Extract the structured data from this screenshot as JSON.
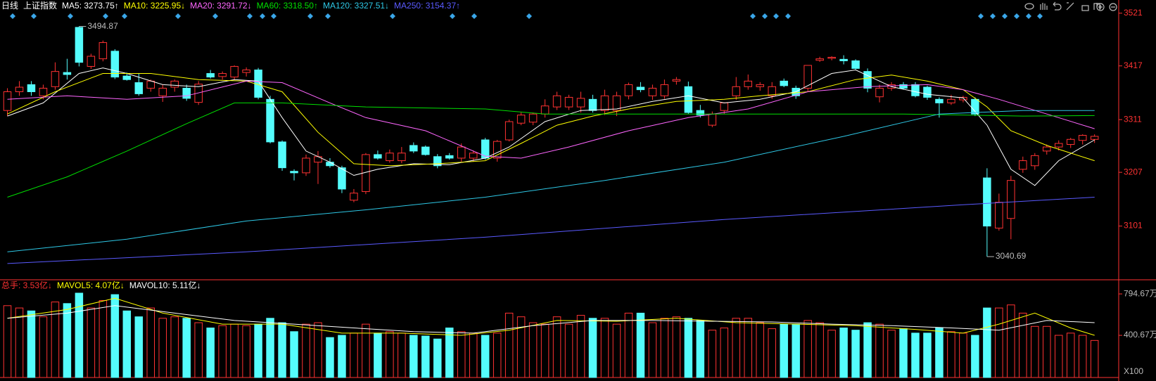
{
  "chart_data": [
    {
      "type": "candlestick",
      "title": "日线",
      "subtitle": "上证指数",
      "up_color": "#ff3232",
      "down_color": "#54fcfc",
      "axis_color": "#ff3232",
      "ylim": [
        2995,
        3547
      ],
      "yticks": [
        3521,
        3417,
        3311,
        3207,
        3101
      ],
      "open": [
        3329,
        3366,
        3380,
        3358,
        3376,
        3404,
        3493,
        3416,
        3431,
        3446,
        3397,
        3384,
        3373,
        3358,
        3375,
        3373,
        3345,
        3402,
        3396,
        3395,
        3404,
        3409,
        3351,
        3267,
        3209,
        3206,
        3227,
        3227,
        3216,
        3152,
        3169,
        3242,
        3230,
        3230,
        3260,
        3257,
        3238,
        3240,
        3235,
        3235,
        3271,
        3235,
        3271,
        3304,
        3306,
        3322,
        3336,
        3336,
        3336,
        3351,
        3329,
        3329,
        3358,
        3375,
        3358,
        3358,
        3387,
        3376,
        3329,
        3300,
        3329,
        3358,
        3376,
        3376,
        3358,
        3387,
        3373,
        3373,
        3428,
        3432,
        3430,
        3427,
        3406,
        3356,
        3373,
        3380,
        3380,
        3375,
        3351,
        3344,
        3350,
        3351,
        3196,
        3097,
        3116,
        3213,
        3220,
        3249,
        3257,
        3262,
        3270,
        3272
      ],
      "high": [
        3373,
        3387,
        3387,
        3380,
        3424,
        3431,
        3494.87,
        3441,
        3467,
        3450,
        3404,
        3402,
        3390,
        3380,
        3390,
        3380,
        3387,
        3409,
        3406,
        3418,
        3414,
        3413,
        3358,
        3270,
        3213,
        3242,
        3249,
        3235,
        3220,
        3174,
        3245,
        3250,
        3252,
        3257,
        3266,
        3260,
        3243,
        3245,
        3264,
        3250,
        3275,
        3271,
        3311,
        3325,
        3325,
        3351,
        3366,
        3360,
        3366,
        3360,
        3370,
        3366,
        3384,
        3385,
        3380,
        3390,
        3395,
        3386,
        3340,
        3327,
        3345,
        3395,
        3400,
        3385,
        3385,
        3392,
        3378,
        3418,
        3435,
        3436,
        3438,
        3430,
        3412,
        3380,
        3385,
        3385,
        3385,
        3378,
        3355,
        3360,
        3358,
        3355,
        3215,
        3165,
        3200,
        3238,
        3245,
        3262,
        3270,
        3275,
        3282,
        3282
      ],
      "low": [
        3318,
        3358,
        3358,
        3351,
        3370,
        3390,
        3416,
        3411,
        3426,
        3391,
        3388,
        3358,
        3366,
        3346,
        3366,
        3348,
        3340,
        3392,
        3390,
        3390,
        3396,
        3351,
        3264,
        3210,
        3191,
        3200,
        3184,
        3216,
        3166,
        3148,
        3164,
        3232,
        3226,
        3225,
        3245,
        3240,
        3215,
        3232,
        3228,
        3228,
        3232,
        3228,
        3268,
        3300,
        3300,
        3315,
        3330,
        3330,
        3325,
        3325,
        3320,
        3318,
        3351,
        3365,
        3350,
        3352,
        3380,
        3322,
        3315,
        3296,
        3322,
        3350,
        3370,
        3368,
        3352,
        3375,
        3352,
        3366,
        3425,
        3428,
        3420,
        3410,
        3365,
        3345,
        3368,
        3370,
        3355,
        3350,
        3315,
        3340,
        3345,
        3318,
        3040.69,
        3092,
        3075,
        3206,
        3212,
        3242,
        3250,
        3255,
        3262,
        3265
      ],
      "close": [
        3366,
        3375,
        3366,
        3373,
        3406,
        3400,
        3424,
        3436,
        3463,
        3395,
        3390,
        3362,
        3387,
        3373,
        3387,
        3353,
        3381,
        3395,
        3402,
        3416,
        3409,
        3355,
        3267,
        3216,
        3206,
        3235,
        3238,
        3220,
        3174,
        3166,
        3242,
        3235,
        3245,
        3245,
        3249,
        3242,
        3220,
        3235,
        3257,
        3245,
        3235,
        3268,
        3307,
        3320,
        3322,
        3338,
        3358,
        3355,
        3353,
        3329,
        3358,
        3358,
        3380,
        3370,
        3373,
        3380,
        3390,
        3325,
        3320,
        3322,
        3344,
        3376,
        3387,
        3380,
        3376,
        3378,
        3358,
        3418,
        3431,
        3434,
        3427,
        3412,
        3373,
        3373,
        3380,
        3373,
        3358,
        3355,
        3344,
        3351,
        3355,
        3322,
        3101,
        3148,
        3191,
        3230,
        3240,
        3257,
        3264,
        3272,
        3280,
        3278
      ],
      "annotations": [
        {
          "x": 6,
          "value": 3494.87
        },
        {
          "x": 82,
          "value": 3040.69
        }
      ],
      "series": [
        {
          "name": "MA5: 3273.75↑",
          "color": "#ffffff",
          "x": [
            0,
            3,
            6,
            8,
            10,
            13,
            16,
            19,
            21,
            23,
            25,
            27,
            29,
            31,
            34,
            37,
            40,
            42,
            45,
            48,
            51,
            54,
            57,
            60,
            63,
            66,
            69,
            71,
            74,
            77,
            80,
            82,
            84,
            86,
            88,
            91
          ],
          "values": [
            3318,
            3344,
            3402,
            3413,
            3402,
            3380,
            3376,
            3390,
            3387,
            3315,
            3249,
            3227,
            3201,
            3213,
            3224,
            3222,
            3235,
            3257,
            3307,
            3329,
            3332,
            3347,
            3358,
            3344,
            3351,
            3366,
            3402,
            3409,
            3376,
            3361,
            3354,
            3300,
            3213,
            3181,
            3230,
            3271
          ]
        },
        {
          "name": "MA10: 3225.95↓",
          "color": "#ffff00",
          "x": [
            0,
            4,
            8,
            12,
            16,
            20,
            23,
            26,
            29,
            32,
            36,
            40,
            43,
            46,
            49,
            52,
            56,
            60,
            63,
            67,
            71,
            74,
            77,
            80,
            82,
            84,
            87,
            91
          ],
          "values": [
            3322,
            3366,
            3402,
            3402,
            3390,
            3387,
            3366,
            3286,
            3224,
            3220,
            3224,
            3230,
            3264,
            3300,
            3318,
            3332,
            3347,
            3351,
            3358,
            3366,
            3390,
            3399,
            3387,
            3370,
            3336,
            3289,
            3260,
            3230
          ]
        },
        {
          "name": "MA20: 3291.72↓",
          "color": "#ff66ff",
          "x": [
            0,
            5,
            10,
            15,
            20,
            23,
            27,
            30,
            35,
            40,
            43,
            47,
            52,
            57,
            62,
            67,
            72,
            77,
            80,
            83,
            87,
            91
          ],
          "values": [
            3351,
            3358,
            3351,
            3358,
            3387,
            3384,
            3344,
            3315,
            3289,
            3239,
            3235,
            3257,
            3289,
            3315,
            3332,
            3366,
            3376,
            3380,
            3370,
            3351,
            3322,
            3293
          ]
        },
        {
          "name": "MA60: 3318.50↑",
          "color": "#00e000",
          "x": [
            0,
            5,
            10,
            15,
            19,
            23,
            30,
            40,
            45,
            55,
            65,
            75,
            85,
            91
          ],
          "values": [
            3158,
            3198,
            3249,
            3303,
            3344,
            3344,
            3336,
            3332,
            3322,
            3322,
            3322,
            3322,
            3318,
            3319
          ]
        },
        {
          "name": "MA120: 3327.51↓",
          "color": "#2ec8e6",
          "x": [
            0,
            10,
            20,
            30,
            40,
            50,
            60,
            70,
            78,
            85,
            91
          ],
          "values": [
            3050,
            3075,
            3111,
            3133,
            3158,
            3191,
            3227,
            3278,
            3322,
            3329,
            3329
          ]
        },
        {
          "name": "MA250: 3154.37↑",
          "color": "#5a5aff",
          "x": [
            0,
            20,
            40,
            60,
            80,
            91
          ],
          "values": [
            3027,
            3050,
            3079,
            3114,
            3143,
            3158
          ]
        }
      ]
    },
    {
      "type": "bar",
      "ylim": [
        0,
        929
      ],
      "yticks": [
        {
          "value": 794.67,
          "label": "794.67万"
        },
        {
          "value": 400.67,
          "label": "400.67万"
        }
      ],
      "unit": "X100",
      "volume": {
        "name": "总手: 3.53亿↓",
        "color": "#ff3232",
        "values": [
          683,
          661,
          633,
          577,
          718,
          703,
          802,
          661,
          732,
          788,
          633,
          577,
          661,
          563,
          577,
          563,
          521,
          471,
          493,
          507,
          493,
          507,
          563,
          521,
          436,
          507,
          521,
          380,
          401,
          422,
          507,
          422,
          436,
          422,
          401,
          394,
          366,
          471,
          436,
          422,
          401,
          422,
          612,
          577,
          521,
          507,
          577,
          507,
          591,
          563,
          563,
          507,
          612,
          612,
          521,
          563,
          577,
          563,
          542,
          450,
          471,
          563,
          563,
          521,
          464,
          507,
          507,
          542,
          521,
          450,
          471,
          450,
          521,
          507,
          450,
          464,
          422,
          422,
          471,
          436,
          422,
          401,
          661,
          661,
          690,
          612,
          486,
          486,
          401,
          422,
          401,
          352
        ]
      },
      "series": [
        {
          "name": "MAVOL5: 4.07亿↓",
          "color": "#ffff00",
          "x": [
            0,
            5,
            9,
            13,
            18,
            23,
            28,
            33,
            38,
            42,
            46,
            51,
            56,
            61,
            66,
            71,
            76,
            80,
            83,
            86,
            89,
            91
          ],
          "values": [
            563,
            647,
            753,
            612,
            507,
            507,
            422,
            422,
            401,
            450,
            542,
            535,
            563,
            521,
            507,
            493,
            457,
            422,
            507,
            612,
            471,
            401
          ]
        },
        {
          "name": "MAVOL10: 5.11亿↓",
          "color": "#ffffff",
          "x": [
            0,
            5,
            9,
            14,
            19,
            24,
            29,
            34,
            39,
            44,
            49,
            54,
            59,
            64,
            69,
            74,
            79,
            83,
            87,
            91
          ],
          "values": [
            563,
            612,
            683,
            612,
            542,
            507,
            471,
            436,
            422,
            493,
            542,
            542,
            535,
            528,
            507,
            493,
            471,
            450,
            542,
            521
          ]
        }
      ]
    }
  ]
}
